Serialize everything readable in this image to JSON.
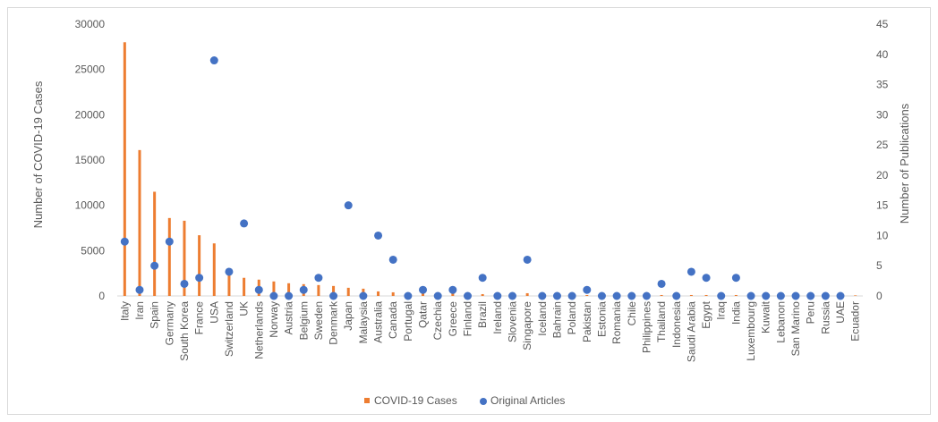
{
  "chart_data": {
    "type": "bar",
    "categories": [
      "Italy",
      "Iran",
      "Spain",
      "Germany",
      "South Korea",
      "France",
      "USA",
      "Switzerland",
      "UK",
      "Netherlands",
      "Norway",
      "Austria",
      "Belgium",
      "Sweden",
      "Denmark",
      "Japan",
      "Malaysia",
      "Australia",
      "Canada",
      "Portugal",
      "Qatar",
      "Czechia",
      "Greece",
      "Finland",
      "Brazil",
      "Ireland",
      "Slovenia",
      "Singapore",
      "Iceland",
      "Bahrain",
      "Poland",
      "Pakistan",
      "Estonia",
      "Romania",
      "Chile",
      "Philippines",
      "Thailand",
      "Indonesia",
      "Saudi Arabia",
      "Egypt",
      "Iraq",
      "India",
      "Luxembourg",
      "Kuwait",
      "Lebanon",
      "San Marino",
      "Peru",
      "Russia",
      "UAE",
      "Ecuador"
    ],
    "series": [
      {
        "name": "COVID-19 Cases",
        "kind": "bar",
        "axis": "left",
        "color": "#ed7d31",
        "values": [
          28000,
          16100,
          11500,
          8600,
          8300,
          6700,
          5800,
          2700,
          2000,
          1800,
          1600,
          1400,
          1300,
          1200,
          1100,
          900,
          800,
          500,
          400,
          250,
          300,
          250,
          250,
          250,
          200,
          200,
          200,
          300,
          200,
          150,
          120,
          100,
          100,
          100,
          100,
          100,
          100,
          100,
          100,
          100,
          100,
          100,
          80,
          80,
          80,
          80,
          60,
          60,
          60,
          60
        ]
      },
      {
        "name": "Original Articles",
        "kind": "scatter",
        "axis": "right",
        "color": "#4472c4",
        "values": [
          9,
          1,
          5,
          9,
          2,
          3,
          39,
          4,
          12,
          1,
          0,
          0,
          1,
          3,
          0,
          15,
          0,
          10,
          6,
          0,
          1,
          0,
          1,
          0,
          3,
          0,
          0,
          6,
          0,
          0,
          0,
          1,
          0,
          0,
          0,
          0,
          2,
          0,
          4,
          3,
          0,
          3,
          0,
          0,
          0,
          0,
          0,
          0,
          0,
          null
        ]
      }
    ],
    "ylabel": "Number of COVID-19 Cases",
    "y2label": "Number of Publications",
    "ylim": [
      0,
      30000
    ],
    "y2lim": [
      0,
      45
    ],
    "yticks": [
      "0",
      "5000",
      "10000",
      "15000",
      "20000",
      "25000",
      "30000"
    ],
    "y2ticks": [
      "0",
      "5",
      "10",
      "15",
      "20",
      "25",
      "30",
      "35",
      "40",
      "45"
    ],
    "legend_position": "bottom",
    "grid": false
  }
}
